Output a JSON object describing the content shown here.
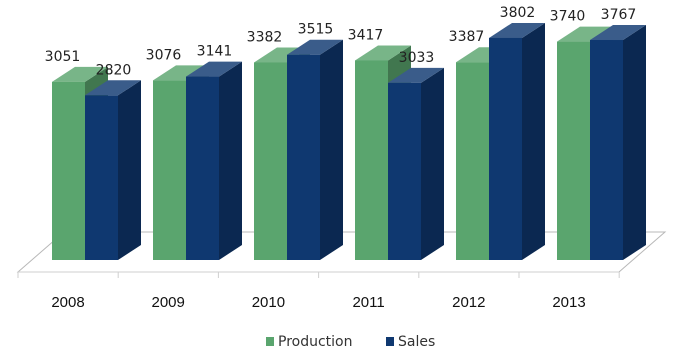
{
  "chart_data": {
    "type": "bar",
    "style": "3d-clustered",
    "categories": [
      "2008",
      "2009",
      "2010",
      "2011",
      "2012",
      "2013"
    ],
    "series": [
      {
        "name": "Production",
        "values": [
          3051,
          3076,
          3382,
          3417,
          3387,
          3740
        ],
        "color": "#5aa56e"
      },
      {
        "name": "Sales",
        "values": [
          2820,
          3141,
          3515,
          3033,
          3802,
          3767
        ],
        "color": "#0f3870"
      }
    ],
    "title": "",
    "xlabel": "",
    "ylabel": "",
    "ylim": [
      0,
      4000
    ],
    "grid": false,
    "legend_position": "bottom",
    "data_labels": true
  }
}
